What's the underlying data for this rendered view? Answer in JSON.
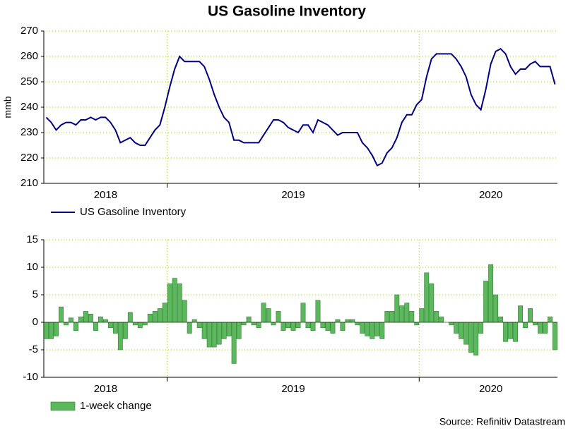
{
  "source": "Source: Refinitiv Datastream",
  "chart_data": [
    {
      "type": "line",
      "title": "US Gasoline Inventory",
      "y_label": "mmb",
      "categories": [
        null,
        null,
        null,
        null,
        null,
        null,
        null,
        null,
        null,
        null,
        null,
        null,
        "2018",
        null,
        null,
        null,
        null,
        null,
        null,
        null,
        null,
        null,
        null,
        null,
        null,
        null,
        null,
        null,
        null,
        null,
        null,
        null,
        null,
        null,
        null,
        null,
        null,
        null,
        null,
        null,
        null,
        null,
        null,
        null,
        null,
        null,
        null,
        null,
        null,
        null,
        "2019",
        null,
        null,
        null,
        null,
        null,
        null,
        null,
        null,
        null,
        null,
        null,
        null,
        null,
        null,
        null,
        null,
        null,
        null,
        null,
        null,
        null,
        null,
        null,
        null,
        null,
        null,
        null,
        null,
        null,
        null,
        null,
        null,
        null,
        null,
        null,
        null,
        null,
        null,
        null,
        "2020",
        null,
        null,
        null,
        null,
        null,
        null,
        null,
        null,
        null,
        null,
        null,
        null,
        null
      ],
      "series": [
        {
          "name": "US Gasoline Inventory",
          "color": "#000080",
          "values": [
            236,
            234,
            231,
            233,
            234,
            234,
            233,
            235,
            235,
            236,
            235,
            236,
            236,
            234,
            231,
            226,
            227,
            228,
            226,
            225,
            225,
            228,
            231,
            233,
            240,
            248,
            255,
            260,
            258,
            258,
            258,
            258,
            256,
            251,
            245,
            240,
            236,
            234,
            227,
            227,
            226,
            226,
            226,
            226,
            229,
            232,
            235,
            235,
            234,
            232,
            231,
            230,
            233,
            233,
            230,
            235,
            234,
            233,
            231,
            229,
            230,
            230,
            230,
            230,
            226,
            224,
            221,
            217,
            218,
            222,
            224,
            228,
            234,
            237,
            237,
            241,
            243,
            252,
            259,
            261,
            261,
            261,
            261,
            259,
            256,
            252,
            245,
            241,
            239,
            247,
            257,
            262,
            263,
            261,
            256,
            253,
            255,
            255,
            257,
            258,
            256,
            256,
            256,
            249
          ]
        }
      ],
      "ylim": [
        210,
        270
      ],
      "yticks": [
        210,
        220,
        230,
        240,
        250,
        260,
        270
      ],
      "grid": true
    },
    {
      "type": "bar",
      "categories": [
        null,
        null,
        null,
        null,
        null,
        null,
        null,
        null,
        null,
        null,
        null,
        null,
        "2018",
        null,
        null,
        null,
        null,
        null,
        null,
        null,
        null,
        null,
        null,
        null,
        null,
        null,
        null,
        null,
        null,
        null,
        null,
        null,
        null,
        null,
        null,
        null,
        null,
        null,
        null,
        null,
        null,
        null,
        null,
        null,
        null,
        null,
        null,
        null,
        null,
        null,
        "2019",
        null,
        null,
        null,
        null,
        null,
        null,
        null,
        null,
        null,
        null,
        null,
        null,
        null,
        null,
        null,
        null,
        null,
        null,
        null,
        null,
        null,
        null,
        null,
        null,
        null,
        null,
        null,
        null,
        null,
        null,
        null,
        null,
        null,
        null,
        null,
        null,
        null,
        null,
        null,
        "2020",
        null,
        null,
        null,
        null,
        null,
        null,
        null,
        null,
        null,
        null,
        null,
        null,
        null
      ],
      "series": [
        {
          "name": "1-week change",
          "color": "#5cb85c",
          "values": [
            -3,
            -3,
            -2.5,
            2.8,
            -0.5,
            0.8,
            -1.5,
            1,
            2,
            1.5,
            -1.5,
            1,
            0.5,
            -1,
            -2,
            -5,
            -3,
            1.8,
            -0.5,
            -1,
            -0.5,
            1.5,
            2,
            2.5,
            3.5,
            7,
            8,
            7,
            4,
            -2,
            0.5,
            -1,
            -3,
            -4.5,
            -4.5,
            -4,
            -3,
            -2.5,
            -7.5,
            -3,
            -0.5,
            1,
            -0.5,
            -1,
            3.5,
            2.5,
            -0.5,
            2,
            -1.5,
            -1,
            -1.5,
            -1,
            3.5,
            -1,
            -1.5,
            4,
            -1,
            -1.5,
            -2,
            0.5,
            -1.5,
            0.5,
            0.5,
            -0.5,
            -2,
            -2.5,
            -3,
            -2.5,
            -3,
            2,
            2,
            5,
            3,
            3.5,
            2,
            -0.5,
            2.5,
            9,
            7,
            2,
            1,
            0,
            -0.5,
            -2,
            -3,
            -4,
            -5.5,
            -6,
            -2,
            7.5,
            10.5,
            5,
            1,
            -3.5,
            -3,
            -3.5,
            3,
            -1,
            2.5,
            -0.5,
            -2,
            -2,
            1,
            -5
          ]
        }
      ],
      "ylim": [
        -10,
        15
      ],
      "yticks": [
        -10,
        -5,
        0,
        5,
        10,
        15
      ],
      "grid": true
    }
  ]
}
